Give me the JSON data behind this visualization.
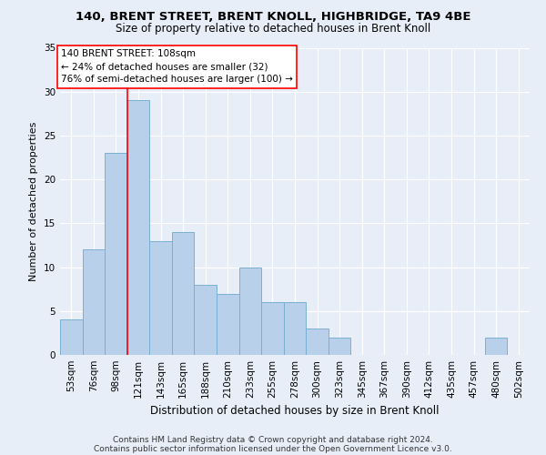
{
  "title1": "140, BRENT STREET, BRENT KNOLL, HIGHBRIDGE, TA9 4BE",
  "title2": "Size of property relative to detached houses in Brent Knoll",
  "xlabel": "Distribution of detached houses by size in Brent Knoll",
  "ylabel": "Number of detached properties",
  "bar_color": "#b8d0ea",
  "bar_edge_color": "#7aafd4",
  "categories": [
    "53sqm",
    "76sqm",
    "98sqm",
    "121sqm",
    "143sqm",
    "165sqm",
    "188sqm",
    "210sqm",
    "233sqm",
    "255sqm",
    "278sqm",
    "300sqm",
    "323sqm",
    "345sqm",
    "367sqm",
    "390sqm",
    "412sqm",
    "435sqm",
    "457sqm",
    "480sqm",
    "502sqm"
  ],
  "values": [
    4,
    12,
    23,
    29,
    13,
    14,
    8,
    7,
    10,
    6,
    6,
    3,
    2,
    0,
    0,
    0,
    0,
    0,
    0,
    2,
    0
  ],
  "ylim": [
    0,
    35
  ],
  "yticks": [
    0,
    5,
    10,
    15,
    20,
    25,
    30,
    35
  ],
  "red_line_x": 2.5,
  "annotation_title": "140 BRENT STREET: 108sqm",
  "annotation_line1": "← 24% of detached houses are smaller (32)",
  "annotation_line2": "76% of semi-detached houses are larger (100) →",
  "footer1": "Contains HM Land Registry data © Crown copyright and database right 2024.",
  "footer2": "Contains public sector information licensed under the Open Government Licence v3.0.",
  "bg_color": "#e8eef8",
  "grid_color": "#ffffff",
  "title1_fontsize": 9.5,
  "title2_fontsize": 8.5,
  "xlabel_fontsize": 8.5,
  "ylabel_fontsize": 8,
  "tick_fontsize": 7.5,
  "annot_fontsize": 7.5,
  "footer_fontsize": 6.5
}
